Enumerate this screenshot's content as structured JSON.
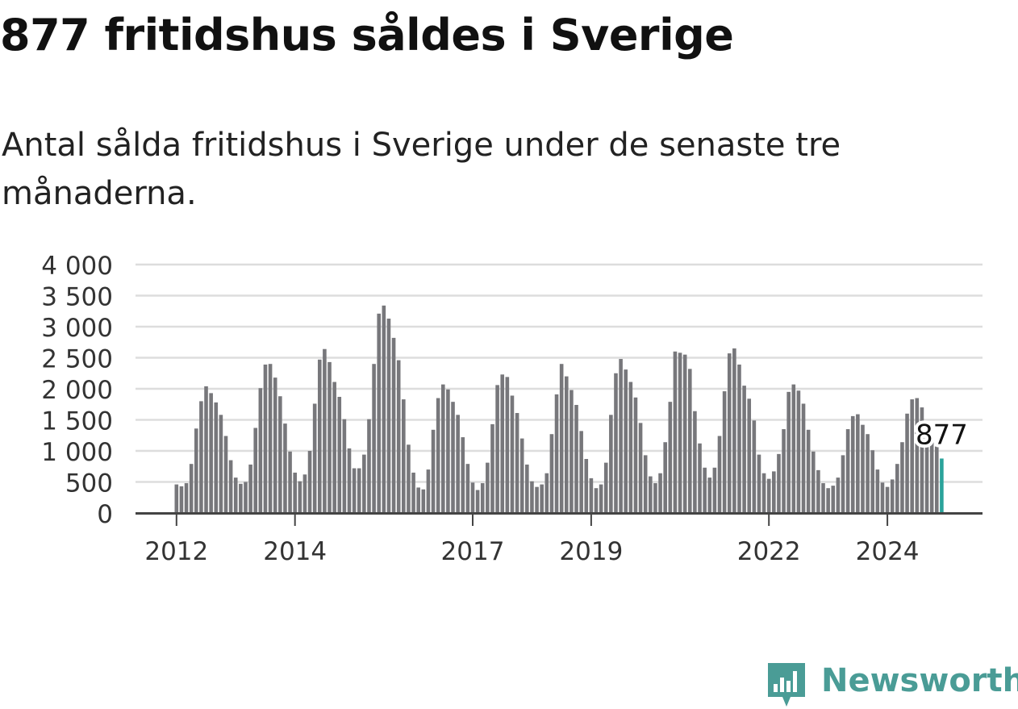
{
  "title": "877 fritidshus såldes i Sverige",
  "subtitle": "Antal sålda fritidshus i Sverige under de senaste tre månaderna.",
  "brand": {
    "name": "Newsworthy",
    "icon": "newsworthy-logo-icon"
  },
  "colors": {
    "bar": "#77777b",
    "highlight": "#2aa39b",
    "grid": "#dddddd",
    "axis": "#444444",
    "text": "#333333"
  },
  "chart_data": {
    "type": "bar",
    "title": "877 fritidshus såldes i Sverige",
    "subtitle": "Antal sålda fritidshus i Sverige under de senaste tre månaderna.",
    "xlabel": "",
    "ylabel": "",
    "ylim": [
      0,
      4000
    ],
    "yticks": [
      0,
      500,
      1000,
      1500,
      2000,
      2500,
      3000,
      3500,
      4000
    ],
    "ytick_labels": [
      "0",
      "500",
      "1 000",
      "1 500",
      "2 000",
      "2 500",
      "3 000",
      "3 500",
      "4 000"
    ],
    "xticks": [
      {
        "label": "2012",
        "index": 0
      },
      {
        "label": "2014",
        "index": 24
      },
      {
        "label": "2017",
        "index": 60
      },
      {
        "label": "2019",
        "index": 84
      },
      {
        "label": "2022",
        "index": 120
      },
      {
        "label": "2024",
        "index": 144
      }
    ],
    "grid": true,
    "legend": "none",
    "highlight": {
      "index": 155,
      "label": "877"
    },
    "values": [
      460,
      430,
      480,
      790,
      1360,
      1800,
      2040,
      1930,
      1780,
      1580,
      1240,
      850,
      570,
      470,
      500,
      780,
      1370,
      2010,
      2390,
      2400,
      2180,
      1880,
      1440,
      990,
      650,
      510,
      620,
      1000,
      1760,
      2470,
      2640,
      2430,
      2110,
      1870,
      1510,
      1040,
      720,
      720,
      940,
      1510,
      2400,
      3210,
      3340,
      3130,
      2820,
      2460,
      1830,
      1100,
      650,
      410,
      380,
      700,
      1340,
      1850,
      2070,
      1990,
      1790,
      1580,
      1220,
      790,
      490,
      370,
      480,
      810,
      1430,
      2060,
      2230,
      2190,
      1890,
      1610,
      1200,
      780,
      510,
      420,
      460,
      640,
      1270,
      1910,
      2400,
      2200,
      1980,
      1740,
      1320,
      870,
      560,
      400,
      460,
      810,
      1580,
      2250,
      2480,
      2310,
      2110,
      1860,
      1450,
      930,
      590,
      480,
      640,
      1140,
      1790,
      2600,
      2580,
      2550,
      2320,
      1640,
      1120,
      730,
      570,
      730,
      1240,
      1960,
      2570,
      2650,
      2390,
      2050,
      1840,
      1490,
      940,
      640,
      550,
      670,
      950,
      1350,
      1950,
      2070,
      1970,
      1760,
      1340,
      990,
      690,
      480,
      400,
      440,
      570,
      930,
      1350,
      1560,
      1590,
      1420,
      1270,
      1010,
      700,
      490,
      420,
      540,
      790,
      1140,
      1600,
      1830,
      1850,
      1700,
      1470,
      1210,
      1070,
      877
    ]
  }
}
